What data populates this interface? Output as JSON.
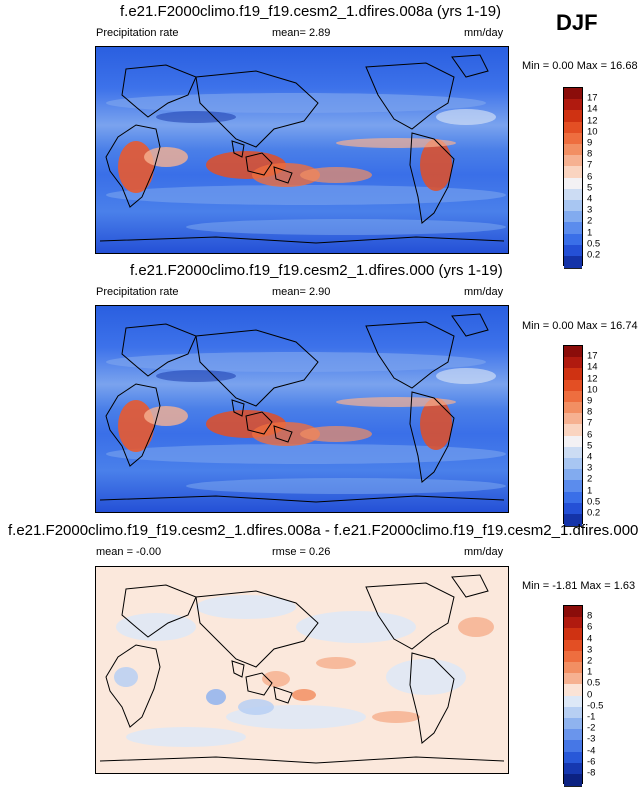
{
  "season": "DJF",
  "panels": [
    {
      "title": "f.e21.F2000climo.f19_f19.cesm2_1.dfires.008a (yrs 1-19)",
      "left_label": "Precipitation rate",
      "center_label": "mean=   2.89",
      "units": "mm/day",
      "minmax": "Min =   0.00 Max =  16.68",
      "kind": "precip",
      "colorbar": {
        "labels": [
          "17",
          "14",
          "12",
          "10",
          "9",
          "8",
          "7",
          "6",
          "5",
          "4",
          "3",
          "2",
          "1",
          "0.5",
          "0.2"
        ],
        "colors": [
          "#8b0d0a",
          "#b01a0f",
          "#cf3212",
          "#e34f24",
          "#ee6e3f",
          "#f28f63",
          "#f6b191",
          "#fad4c0",
          "#f3f1f4",
          "#ccdcf3",
          "#a8c6f2",
          "#82abef",
          "#5b8ced",
          "#3a6fe8",
          "#2450d6",
          "#1433a8"
        ]
      }
    },
    {
      "title": "f.e21.F2000climo.f19_f19.cesm2_1.dfires.000 (yrs 1-19)",
      "left_label": "Precipitation rate",
      "center_label": "mean=   2.90",
      "units": "mm/day",
      "minmax": "Min =   0.00 Max =  16.74",
      "kind": "precip",
      "colorbar": {
        "labels": [
          "17",
          "14",
          "12",
          "10",
          "9",
          "8",
          "7",
          "6",
          "5",
          "4",
          "3",
          "2",
          "1",
          "0.5",
          "0.2"
        ],
        "colors": [
          "#8b0d0a",
          "#b01a0f",
          "#cf3212",
          "#e34f24",
          "#ee6e3f",
          "#f28f63",
          "#f6b191",
          "#fad4c0",
          "#f3f1f4",
          "#ccdcf3",
          "#a8c6f2",
          "#82abef",
          "#5b8ced",
          "#3a6fe8",
          "#2450d6",
          "#1433a8"
        ]
      }
    },
    {
      "title": "f.e21.F2000climo.f19_f19.cesm2_1.dfires.008a - f.e21.F2000climo.f19_f19.cesm2_1.dfires.000",
      "left_label": "mean =  -0.00",
      "center_label": "rmse =   0.26",
      "units": "mm/day",
      "minmax": "Min =  -1.81 Max =   1.63",
      "kind": "diff",
      "colorbar": {
        "labels": [
          "8",
          "6",
          "4",
          "3",
          "2",
          "1",
          "0.5",
          "0",
          "-0.5",
          "-1",
          "-2",
          "-3",
          "-4",
          "-6",
          "-8"
        ],
        "colors": [
          "#8b0d0a",
          "#b01a0f",
          "#cf3212",
          "#e34f24",
          "#ee6e3f",
          "#f28f63",
          "#f6b191",
          "#fbe3d6",
          "#dde8f7",
          "#b7cff3",
          "#8fb3ef",
          "#6a95ec",
          "#4677e6",
          "#2858d8",
          "#1638b0",
          "#0c2282"
        ]
      }
    }
  ]
}
